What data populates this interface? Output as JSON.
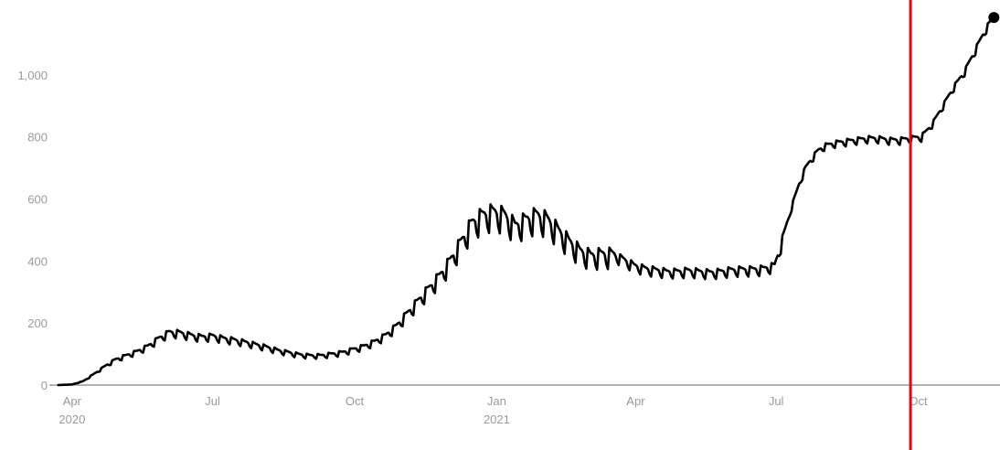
{
  "chart_data": {
    "type": "line",
    "title": "",
    "xlabel": "",
    "ylabel": "",
    "x_range": [
      "2020-03-22",
      "2021-11-20"
    ],
    "ylim": [
      0,
      1200
    ],
    "y_ticks": [
      {
        "value": 0,
        "label": "0"
      },
      {
        "value": 200,
        "label": "200"
      },
      {
        "value": 400,
        "label": "400"
      },
      {
        "value": 600,
        "label": "600"
      },
      {
        "value": 800,
        "label": "800"
      },
      {
        "value": 1000,
        "label": "1,000"
      }
    ],
    "x_ticks": [
      {
        "date": "2020-04-01",
        "label": "Apr",
        "sublabel": "2020"
      },
      {
        "date": "2020-07-01",
        "label": "Jul",
        "sublabel": ""
      },
      {
        "date": "2020-10-01",
        "label": "Oct",
        "sublabel": ""
      },
      {
        "date": "2021-01-01",
        "label": "Jan",
        "sublabel": "2021"
      },
      {
        "date": "2021-04-01",
        "label": "Apr",
        "sublabel": ""
      },
      {
        "date": "2021-07-01",
        "label": "Jul",
        "sublabel": ""
      },
      {
        "date": "2021-10-01",
        "label": "Oct",
        "sublabel": ""
      }
    ],
    "grid": false,
    "legend": "none",
    "series": [
      {
        "color": "#000000",
        "points": [
          [
            "2020-03-23",
            0
          ],
          [
            "2020-04-01",
            2
          ],
          [
            "2020-04-08",
            12
          ],
          [
            "2020-04-15",
            35
          ],
          [
            "2020-04-22",
            60
          ],
          [
            "2020-04-29",
            82
          ],
          [
            "2020-05-06",
            95
          ],
          [
            "2020-05-13",
            108
          ],
          [
            "2020-05-20",
            125
          ],
          [
            "2020-05-27",
            150
          ],
          [
            "2020-06-03",
            170
          ],
          [
            "2020-06-10",
            168
          ],
          [
            "2020-06-17",
            160
          ],
          [
            "2020-06-24",
            155
          ],
          [
            "2020-07-01",
            158
          ],
          [
            "2020-07-08",
            150
          ],
          [
            "2020-07-15",
            145
          ],
          [
            "2020-07-22",
            138
          ],
          [
            "2020-07-29",
            130
          ],
          [
            "2020-08-05",
            122
          ],
          [
            "2020-08-12",
            112
          ],
          [
            "2020-08-19",
            105
          ],
          [
            "2020-08-26",
            98
          ],
          [
            "2020-09-02",
            95
          ],
          [
            "2020-09-09",
            95
          ],
          [
            "2020-09-16",
            100
          ],
          [
            "2020-09-23",
            105
          ],
          [
            "2020-09-30",
            115
          ],
          [
            "2020-10-07",
            125
          ],
          [
            "2020-10-14",
            140
          ],
          [
            "2020-10-21",
            160
          ],
          [
            "2020-10-28",
            190
          ],
          [
            "2020-11-04",
            230
          ],
          [
            "2020-11-11",
            270
          ],
          [
            "2020-11-18",
            310
          ],
          [
            "2020-11-25",
            350
          ],
          [
            "2020-12-02",
            400
          ],
          [
            "2020-12-09",
            460
          ],
          [
            "2020-12-16",
            520
          ],
          [
            "2020-12-23",
            545
          ],
          [
            "2020-12-30",
            555
          ],
          [
            "2021-01-06",
            545
          ],
          [
            "2021-01-13",
            510
          ],
          [
            "2021-01-20",
            530
          ],
          [
            "2021-01-27",
            545
          ],
          [
            "2021-02-03",
            530
          ],
          [
            "2021-02-10",
            495
          ],
          [
            "2021-02-17",
            460
          ],
          [
            "2021-02-24",
            430
          ],
          [
            "2021-03-03",
            415
          ],
          [
            "2021-03-10",
            420
          ],
          [
            "2021-03-17",
            420
          ],
          [
            "2021-03-24",
            405
          ],
          [
            "2021-03-31",
            385
          ],
          [
            "2021-04-07",
            375
          ],
          [
            "2021-04-14",
            370
          ],
          [
            "2021-04-21",
            365
          ],
          [
            "2021-04-28",
            365
          ],
          [
            "2021-05-05",
            368
          ],
          [
            "2021-05-12",
            365
          ],
          [
            "2021-05-19",
            362
          ],
          [
            "2021-05-26",
            365
          ],
          [
            "2021-06-02",
            370
          ],
          [
            "2021-06-09",
            372
          ],
          [
            "2021-06-16",
            372
          ],
          [
            "2021-06-23",
            375
          ],
          [
            "2021-06-30",
            385
          ],
          [
            "2021-07-04",
            450
          ],
          [
            "2021-07-08",
            520
          ],
          [
            "2021-07-12",
            590
          ],
          [
            "2021-07-16",
            650
          ],
          [
            "2021-07-20",
            700
          ],
          [
            "2021-07-24",
            730
          ],
          [
            "2021-07-28",
            755
          ],
          [
            "2021-08-01",
            770
          ],
          [
            "2021-08-08",
            780
          ],
          [
            "2021-08-15",
            785
          ],
          [
            "2021-08-22",
            790
          ],
          [
            "2021-08-29",
            795
          ],
          [
            "2021-09-05",
            795
          ],
          [
            "2021-09-12",
            790
          ],
          [
            "2021-09-19",
            790
          ],
          [
            "2021-09-26",
            795
          ],
          [
            "2021-10-03",
            800
          ],
          [
            "2021-10-10",
            840
          ],
          [
            "2021-10-17",
            900
          ],
          [
            "2021-10-24",
            960
          ],
          [
            "2021-10-31",
            1010
          ],
          [
            "2021-11-07",
            1080
          ],
          [
            "2021-11-14",
            1150
          ],
          [
            "2021-11-19",
            1185
          ]
        ]
      }
    ],
    "end_marker": {
      "date": "2021-11-19",
      "value": 1185
    },
    "reference_line": {
      "date": "2021-09-26",
      "color": "#e30613"
    }
  }
}
